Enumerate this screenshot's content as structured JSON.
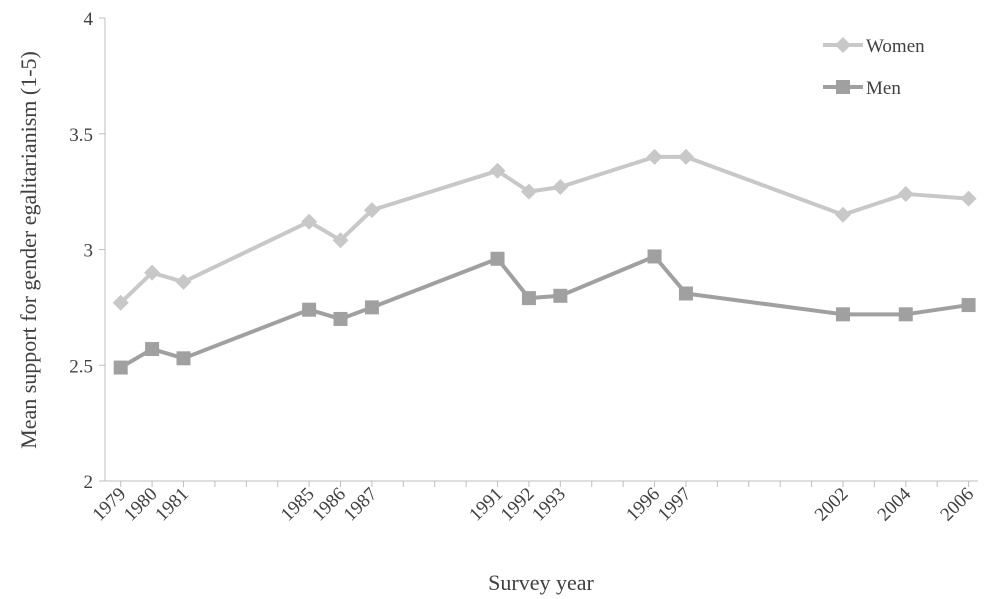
{
  "chart_data": {
    "type": "line",
    "title": "",
    "xlabel": "Survey year",
    "ylabel": "Mean support for gender egalitarianism (1-5)",
    "x": [
      1979,
      1980,
      1981,
      1985,
      1986,
      1987,
      1991,
      1992,
      1993,
      1996,
      1997,
      2002,
      2004,
      2006
    ],
    "x_tick_labels": [
      "1979",
      "1980",
      "1981",
      "1985",
      "1986",
      "1987",
      "1991",
      "1992",
      "1993",
      "1996",
      "1997",
      "2002",
      "2004",
      "2006"
    ],
    "xlim": [
      1978.5,
      2006.3
    ],
    "ylim": [
      2,
      4
    ],
    "y_ticks": [
      2,
      2.5,
      3,
      3.5,
      4
    ],
    "y_tick_labels": [
      "2",
      "2.5",
      "3",
      "3.5",
      "4"
    ],
    "grid": false,
    "legend_position": "top-right",
    "series": [
      {
        "name": "Women",
        "marker": "diamond",
        "color": "#c8c8c8",
        "values": [
          2.77,
          2.9,
          2.86,
          3.12,
          3.04,
          3.17,
          3.34,
          3.25,
          3.27,
          3.4,
          3.4,
          3.15,
          3.24,
          3.22
        ]
      },
      {
        "name": "Men",
        "marker": "square",
        "color": "#a0a0a0",
        "values": [
          2.49,
          2.57,
          2.53,
          2.74,
          2.7,
          2.75,
          2.96,
          2.79,
          2.8,
          2.97,
          2.81,
          2.72,
          2.72,
          2.76
        ]
      }
    ]
  }
}
